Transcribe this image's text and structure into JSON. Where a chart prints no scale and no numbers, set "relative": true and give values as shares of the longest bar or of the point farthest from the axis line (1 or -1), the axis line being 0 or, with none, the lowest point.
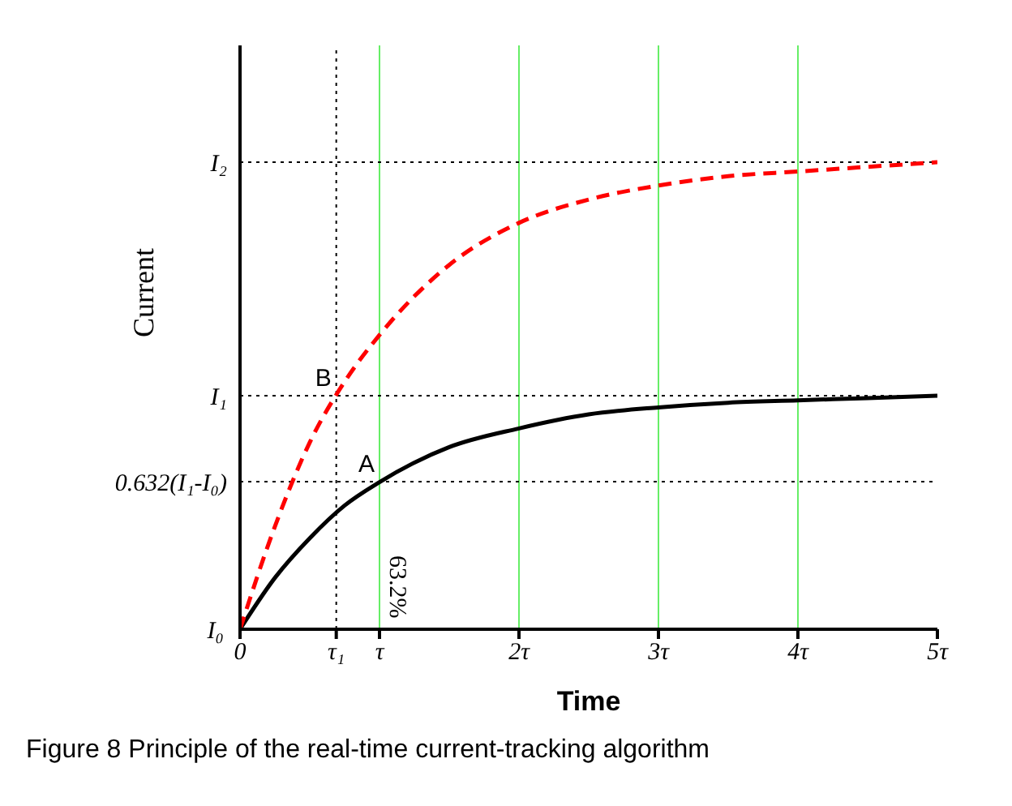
{
  "chart_data": {
    "type": "line",
    "relative": true,
    "xlabel": "Time",
    "ylabel": "Current",
    "x": [
      0,
      0.25,
      0.5,
      0.75,
      1,
      1.5,
      2,
      2.5,
      3,
      3.5,
      4,
      4.5,
      5
    ],
    "series": [
      {
        "color": "#000000",
        "line_style": "solid",
        "values": [
          0,
          0.11,
          0.195,
          0.265,
          0.315,
          0.39,
          0.43,
          0.46,
          0.475,
          0.485,
          0.49,
          0.495,
          0.5
        ]
      },
      {
        "color": "#ff0000",
        "line_style": "dashed",
        "values": [
          0,
          0.22,
          0.4,
          0.53,
          0.63,
          0.78,
          0.87,
          0.92,
          0.95,
          0.97,
          0.98,
          0.99,
          1
        ]
      }
    ],
    "xlim": [
      0,
      5
    ],
    "xticks": [
      0,
      {
        "value": 0.69,
        "label": "τ₁"
      },
      {
        "value": 1,
        "label": "τ"
      },
      {
        "value": 2,
        "label": "2τ"
      },
      {
        "value": 3,
        "label": "3τ"
      },
      {
        "value": 4,
        "label": "4τ"
      },
      {
        "value": 5,
        "label": "5τ"
      }
    ],
    "ref_lines": [
      {
        "axis": "x",
        "value": 1,
        "color": "#66ee66",
        "line_style": "solid"
      },
      {
        "axis": "x",
        "value": 2,
        "color": "#66ee66",
        "line_style": "solid"
      },
      {
        "axis": "x",
        "value": 3,
        "color": "#66ee66",
        "line_style": "solid"
      },
      {
        "axis": "x",
        "value": 4,
        "color": "#66ee66",
        "line_style": "solid"
      },
      {
        "axis": "x",
        "value": 0.69,
        "color": "#000000",
        "line_style": "dotted"
      },
      {
        "axis": "y",
        "value": 1,
        "color": "#000000",
        "line_style": "dotted",
        "label": "I₂"
      },
      {
        "axis": "y",
        "value": 0.5,
        "color": "#000000",
        "line_style": "dotted",
        "label": "I₁"
      },
      {
        "axis": "y",
        "value": 0.316,
        "color": "#000000",
        "line_style": "dotted",
        "label": "0.632(I₁-I₀)"
      }
    ],
    "annotations": [
      {
        "text": "I₀",
        "x": 0,
        "y": 0
      },
      {
        "text": "A",
        "x": 1,
        "y": 0.316
      },
      {
        "text": "B",
        "x": 0.69,
        "y": 0.5
      },
      {
        "text": "63.2%",
        "x": 1,
        "y": 0.158
      },
      "Figure 8 Principle of the real-time current-tracking algorithm"
    ],
    "legend": false,
    "grid": false,
    "marker": "none"
  }
}
